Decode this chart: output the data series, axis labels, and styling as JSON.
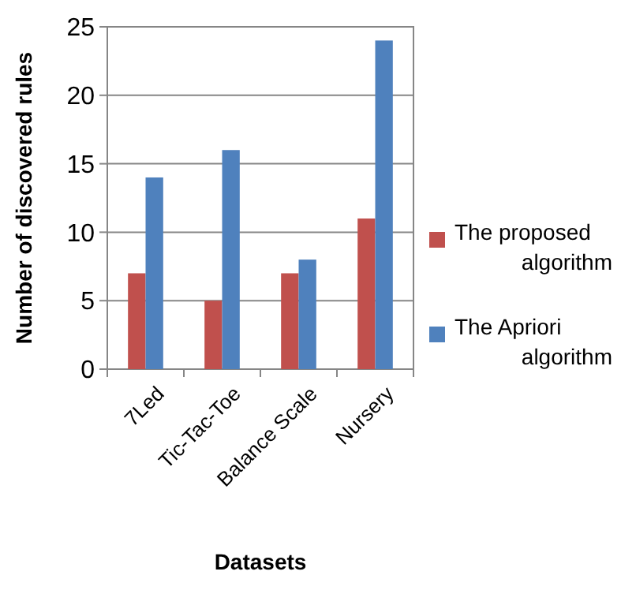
{
  "chart_data": {
    "type": "bar",
    "xlabel": "Datasets",
    "ylabel": "Number of discovered rules",
    "categories": [
      "7Led",
      "Tic-Tac-Toe",
      "Balance Scale",
      "Nursery"
    ],
    "series": [
      {
        "name": "The proposed algorithm",
        "color": "#c0504d",
        "values": [
          7,
          5,
          7,
          11
        ]
      },
      {
        "name": "The Apriori algorithm",
        "color": "#4f81bd",
        "values": [
          14,
          16,
          8,
          24
        ]
      }
    ],
    "ylim": [
      0,
      25
    ],
    "yticks": [
      0,
      5,
      10,
      15,
      20,
      25
    ],
    "grid": "y",
    "legend": "right"
  }
}
